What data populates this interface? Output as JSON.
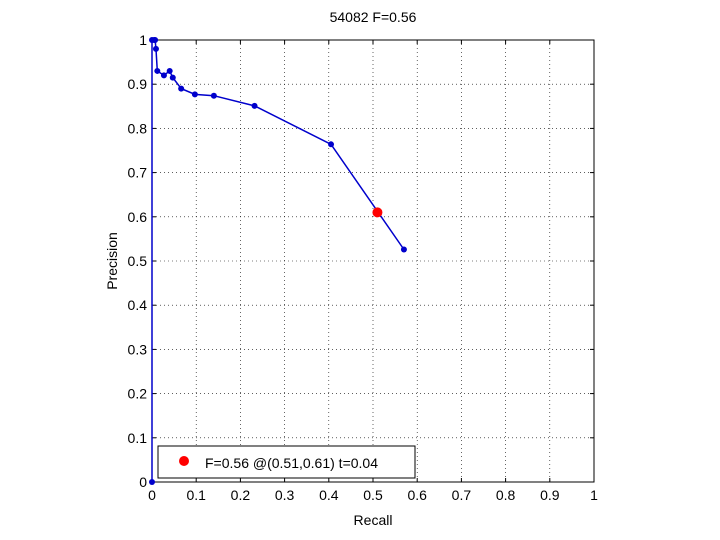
{
  "chart_data": {
    "type": "line",
    "title": "54082 F=0.56",
    "xlabel": "Recall",
    "ylabel": "Precision",
    "xlim": [
      0,
      1
    ],
    "ylim": [
      0,
      1
    ],
    "grid": true,
    "xticks": [
      "0",
      "0.1",
      "0.2",
      "0.3",
      "0.4",
      "0.5",
      "0.6",
      "0.7",
      "0.8",
      "0.9",
      "1"
    ],
    "yticks": [
      "0",
      "0.1",
      "0.2",
      "0.3",
      "0.4",
      "0.5",
      "0.6",
      "0.7",
      "0.8",
      "0.9",
      "1"
    ],
    "legend_position": "bottom-left",
    "series": [
      {
        "color": "#0000cc",
        "points": [
          [
            0.0,
            0.0
          ],
          [
            0.0,
            1.0
          ],
          [
            0.005,
            1.0
          ],
          [
            0.007,
            1.0
          ],
          [
            0.009,
            0.98
          ],
          [
            0.012,
            0.93
          ],
          [
            0.027,
            0.92
          ],
          [
            0.04,
            0.93
          ],
          [
            0.047,
            0.915
          ],
          [
            0.066,
            0.89
          ],
          [
            0.097,
            0.877
          ],
          [
            0.14,
            0.874
          ],
          [
            0.232,
            0.851
          ],
          [
            0.405,
            0.764
          ],
          [
            0.57,
            0.526
          ]
        ]
      }
    ],
    "highlight": {
      "recall": 0.51,
      "precision": 0.61,
      "color": "#ff0000",
      "label": "F=0.56 @(0.51,0.61) t=0.04"
    }
  }
}
